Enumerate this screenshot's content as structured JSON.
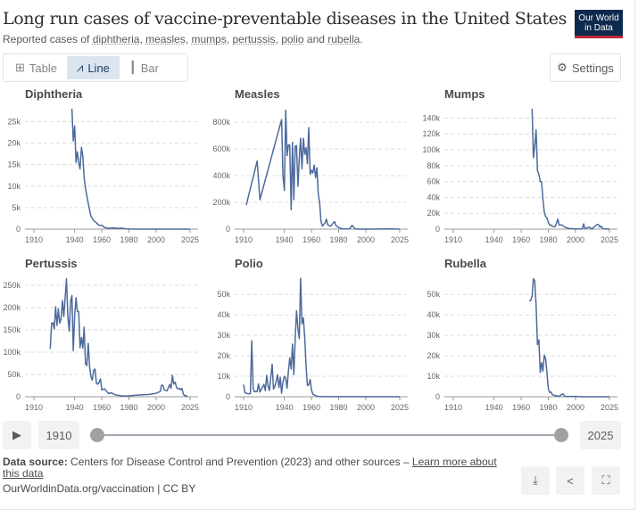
{
  "header": {
    "title": "Long run cases of vaccine-preventable diseases in the United States",
    "subtitle_prefix": "Reported cases of ",
    "subtitle_terms": [
      "diphtheria",
      "measles",
      "mumps",
      "pertussis",
      "polio",
      "rubella"
    ],
    "subtitle_seps": [
      ", ",
      ", ",
      ", ",
      ", ",
      " and ",
      "."
    ],
    "logo": "Our World in Data"
  },
  "toolbar": {
    "tabs": [
      {
        "label": "Table",
        "icon": "table-icon"
      },
      {
        "label": "Line",
        "icon": "line-chart-icon",
        "active": true
      },
      {
        "label": "Bar",
        "icon": "bar-chart-icon"
      }
    ],
    "settings_label": "Settings"
  },
  "timeline": {
    "start": "1910",
    "end": "2025"
  },
  "footer": {
    "source_label": "Data source:",
    "source_text": " Centers for Disease Control and Prevention (2023) and other sources – ",
    "learn_more": "Learn more about this data",
    "url": "OurWorldinData.org/vaccination | CC BY"
  },
  "colors": {
    "line": "#4c6a9c",
    "grid": "#dddddd"
  },
  "chart_data": [
    {
      "type": "line",
      "title": "Diphtheria",
      "xticks": [
        "1910",
        "1940",
        "1960",
        "1980",
        "2000",
        "2025"
      ],
      "yticks": [
        0,
        5000,
        10000,
        15000,
        20000,
        25000
      ],
      "ytick_labels": [
        "0",
        "5k",
        "10k",
        "15k",
        "20k",
        "25k"
      ],
      "ylim": [
        0,
        28400
      ],
      "xlim": [
        1910,
        2025
      ],
      "series": [
        [
          1938,
          28000
        ],
        [
          1939,
          20500
        ],
        [
          1940,
          24000
        ],
        [
          1941,
          15500
        ],
        [
          1942,
          18000
        ],
        [
          1943,
          15500
        ],
        [
          1944,
          14000
        ],
        [
          1945,
          19000
        ],
        [
          1946,
          17000
        ],
        [
          1947,
          12000
        ],
        [
          1948,
          9500
        ],
        [
          1950,
          6000
        ],
        [
          1952,
          3000
        ],
        [
          1954,
          2000
        ],
        [
          1956,
          1500
        ],
        [
          1958,
          900
        ],
        [
          1960,
          900
        ],
        [
          1962,
          400
        ],
        [
          1965,
          200
        ],
        [
          1970,
          300
        ],
        [
          1972,
          150
        ],
        [
          1975,
          250
        ],
        [
          1978,
          50
        ],
        [
          1985,
          10
        ],
        [
          2025,
          0
        ]
      ]
    },
    {
      "type": "line",
      "title": "Measles",
      "xticks": [
        "1910",
        "1940",
        "1960",
        "1980",
        "2000",
        "2025"
      ],
      "yticks": [
        0,
        200000,
        400000,
        600000,
        800000
      ],
      "ytick_labels": [
        "0",
        "200k",
        "400k",
        "600k",
        "800k"
      ],
      "ylim": [
        0,
        914000
      ],
      "xlim": [
        1910,
        2025
      ],
      "series": [
        [
          1912,
          180000
        ],
        [
          1920,
          510000
        ],
        [
          1922,
          220000
        ],
        [
          1938,
          820000
        ],
        [
          1939,
          400000
        ],
        [
          1940,
          290000
        ],
        [
          1941,
          890000
        ],
        [
          1942,
          550000
        ],
        [
          1943,
          630000
        ],
        [
          1944,
          630000
        ],
        [
          1945,
          145000
        ],
        [
          1946,
          650000
        ],
        [
          1947,
          220000
        ],
        [
          1948,
          620000
        ],
        [
          1949,
          625000
        ],
        [
          1950,
          320000
        ],
        [
          1951,
          530000
        ],
        [
          1952,
          680000
        ],
        [
          1953,
          450000
        ],
        [
          1954,
          680000
        ],
        [
          1955,
          560000
        ],
        [
          1956,
          610000
        ],
        [
          1957,
          490000
        ],
        [
          1958,
          760000
        ],
        [
          1959,
          410000
        ],
        [
          1960,
          440000
        ],
        [
          1961,
          420000
        ],
        [
          1962,
          480000
        ],
        [
          1963,
          385000
        ],
        [
          1964,
          460000
        ],
        [
          1965,
          260000
        ],
        [
          1966,
          200000
        ],
        [
          1967,
          60000
        ],
        [
          1968,
          22000
        ],
        [
          1970,
          47000
        ],
        [
          1971,
          75000
        ],
        [
          1972,
          32000
        ],
        [
          1974,
          22000
        ],
        [
          1977,
          57000
        ],
        [
          1978,
          27000
        ],
        [
          1980,
          13000
        ],
        [
          1983,
          1500
        ],
        [
          1988,
          3000
        ],
        [
          1990,
          28000
        ],
        [
          1992,
          2200
        ],
        [
          1995,
          300
        ],
        [
          2000,
          100
        ],
        [
          2019,
          1300
        ],
        [
          2025,
          300
        ]
      ]
    },
    {
      "type": "line",
      "title": "Mumps",
      "xticks": [
        "1910",
        "1940",
        "1960",
        "1980",
        "2000",
        "2025"
      ],
      "yticks": [
        0,
        20000,
        40000,
        60000,
        80000,
        100000,
        120000,
        140000
      ],
      "ytick_labels": [
        "0",
        "20k",
        "40k",
        "60k",
        "80k",
        "100k",
        "120k",
        "140k"
      ],
      "ylim": [
        0,
        154000
      ],
      "xlim": [
        1910,
        2025
      ],
      "series": [
        [
          1968,
          152000
        ],
        [
          1969,
          90000
        ],
        [
          1970,
          105000
        ],
        [
          1971,
          125000
        ],
        [
          1972,
          74000
        ],
        [
          1973,
          69000
        ],
        [
          1974,
          60000
        ],
        [
          1975,
          60000
        ],
        [
          1976,
          39000
        ],
        [
          1977,
          21000
        ],
        [
          1978,
          16000
        ],
        [
          1979,
          14000
        ],
        [
          1980,
          8600
        ],
        [
          1981,
          4900
        ],
        [
          1982,
          5300
        ],
        [
          1983,
          3300
        ],
        [
          1985,
          3000
        ],
        [
          1986,
          7800
        ],
        [
          1987,
          12800
        ],
        [
          1988,
          4900
        ],
        [
          1990,
          5300
        ],
        [
          1992,
          2600
        ],
        [
          1995,
          900
        ],
        [
          2000,
          340
        ],
        [
          2005,
          300
        ],
        [
          2006,
          6600
        ],
        [
          2007,
          800
        ],
        [
          2009,
          2000
        ],
        [
          2010,
          2600
        ],
        [
          2012,
          200
        ],
        [
          2016,
          6000
        ],
        [
          2017,
          5600
        ],
        [
          2018,
          2500
        ],
        [
          2019,
          3800
        ],
        [
          2020,
          600
        ],
        [
          2022,
          300
        ],
        [
          2025,
          0
        ]
      ]
    },
    {
      "type": "line",
      "title": "Pertussis",
      "xticks": [
        "1910",
        "1940",
        "1960",
        "1980",
        "2000",
        "2025"
      ],
      "yticks": [
        0,
        50000,
        100000,
        150000,
        200000,
        250000
      ],
      "ytick_labels": [
        "0",
        "50k",
        "100k",
        "150k",
        "200k",
        "250k"
      ],
      "ylim": [
        0,
        280000
      ],
      "xlim": [
        1910,
        2025
      ],
      "series": [
        [
          1922,
          107000
        ],
        [
          1923,
          165000
        ],
        [
          1924,
          166000
        ],
        [
          1925,
          152000
        ],
        [
          1926,
          202000
        ],
        [
          1927,
          160000
        ],
        [
          1928,
          197000
        ],
        [
          1929,
          165000
        ],
        [
          1930,
          175000
        ],
        [
          1931,
          216000
        ],
        [
          1932,
          180000
        ],
        [
          1934,
          265000
        ],
        [
          1935,
          180000
        ],
        [
          1936,
          147000
        ],
        [
          1937,
          215000
        ],
        [
          1938,
          227000
        ],
        [
          1939,
          103000
        ],
        [
          1940,
          183000
        ],
        [
          1941,
          222000
        ],
        [
          1942,
          191000
        ],
        [
          1943,
          191000
        ],
        [
          1944,
          110000
        ],
        [
          1945,
          133000
        ],
        [
          1946,
          109000
        ],
        [
          1947,
          156000
        ],
        [
          1948,
          74000
        ],
        [
          1949,
          70000
        ],
        [
          1950,
          120000
        ],
        [
          1951,
          68000
        ],
        [
          1952,
          45000
        ],
        [
          1953,
          37000
        ],
        [
          1954,
          60000
        ],
        [
          1955,
          62000
        ],
        [
          1956,
          31000
        ],
        [
          1957,
          28000
        ],
        [
          1958,
          32000
        ],
        [
          1959,
          40000
        ],
        [
          1960,
          15000
        ],
        [
          1962,
          18000
        ],
        [
          1965,
          7000
        ],
        [
          1967,
          9000
        ],
        [
          1970,
          4200
        ],
        [
          1975,
          1700
        ],
        [
          1980,
          1700
        ],
        [
          1985,
          3600
        ],
        [
          1990,
          4600
        ],
        [
          1995,
          5100
        ],
        [
          2000,
          7900
        ],
        [
          2003,
          11600
        ],
        [
          2004,
          25800
        ],
        [
          2005,
          25600
        ],
        [
          2006,
          15600
        ],
        [
          2008,
          13300
        ],
        [
          2010,
          27500
        ],
        [
          2011,
          18700
        ],
        [
          2012,
          48300
        ],
        [
          2013,
          28600
        ],
        [
          2014,
          32900
        ],
        [
          2015,
          20800
        ],
        [
          2016,
          17900
        ],
        [
          2017,
          18900
        ],
        [
          2018,
          15600
        ],
        [
          2019,
          18600
        ],
        [
          2020,
          6100
        ],
        [
          2021,
          2100
        ],
        [
          2022,
          3000
        ],
        [
          2023,
          0
        ]
      ]
    },
    {
      "type": "line",
      "title": "Polio",
      "xticks": [
        "1910",
        "1940",
        "1960",
        "1980",
        "2000",
        "2025"
      ],
      "yticks": [
        0,
        10000,
        20000,
        30000,
        40000,
        50000
      ],
      "ytick_labels": [
        "0",
        "10k",
        "20k",
        "30k",
        "40k",
        "50k"
      ],
      "ylim": [
        0,
        61000
      ],
      "xlim": [
        1910,
        2025
      ],
      "series": [
        [
          1910,
          6000
        ],
        [
          1911,
          2000
        ],
        [
          1913,
          1500
        ],
        [
          1915,
          1500
        ],
        [
          1916,
          27300
        ],
        [
          1917,
          4000
        ],
        [
          1918,
          2500
        ],
        [
          1920,
          2500
        ],
        [
          1921,
          6300
        ],
        [
          1922,
          2300
        ],
        [
          1925,
          6000
        ],
        [
          1926,
          3000
        ],
        [
          1927,
          10500
        ],
        [
          1928,
          5300
        ],
        [
          1929,
          3000
        ],
        [
          1931,
          15900
        ],
        [
          1932,
          3800
        ],
        [
          1933,
          5000
        ],
        [
          1934,
          7500
        ],
        [
          1935,
          10800
        ],
        [
          1936,
          4500
        ],
        [
          1937,
          9500
        ],
        [
          1938,
          1700
        ],
        [
          1939,
          7300
        ],
        [
          1940,
          10000
        ],
        [
          1941,
          9000
        ],
        [
          1942,
          4200
        ],
        [
          1943,
          12500
        ],
        [
          1944,
          19000
        ],
        [
          1945,
          13600
        ],
        [
          1946,
          25700
        ],
        [
          1947,
          10800
        ],
        [
          1948,
          27700
        ],
        [
          1949,
          42000
        ],
        [
          1950,
          33300
        ],
        [
          1951,
          28400
        ],
        [
          1952,
          57900
        ],
        [
          1953,
          35600
        ],
        [
          1954,
          38500
        ],
        [
          1955,
          28900
        ],
        [
          1956,
          15100
        ],
        [
          1957,
          5500
        ],
        [
          1958,
          5800
        ],
        [
          1959,
          8400
        ],
        [
          1960,
          3200
        ],
        [
          1961,
          1300
        ],
        [
          1962,
          900
        ],
        [
          1965,
          70
        ],
        [
          1970,
          30
        ],
        [
          2025,
          0
        ]
      ]
    },
    {
      "type": "line",
      "title": "Rubella",
      "xticks": [
        "1910",
        "1940",
        "1960",
        "1980",
        "2000",
        "2025"
      ],
      "yticks": [
        0,
        10000,
        20000,
        30000,
        40000,
        50000
      ],
      "ytick_labels": [
        "0",
        "10k",
        "20k",
        "30k",
        "40k",
        "50k"
      ],
      "ylim": [
        0,
        61000
      ],
      "xlim": [
        1910,
        2025
      ],
      "series": [
        [
          1966,
          46900
        ],
        [
          1967,
          47000
        ],
        [
          1968,
          49000
        ],
        [
          1969,
          57700
        ],
        [
          1970,
          56500
        ],
        [
          1971,
          45000
        ],
        [
          1972,
          25500
        ],
        [
          1973,
          27800
        ],
        [
          1974,
          11900
        ],
        [
          1975,
          16700
        ],
        [
          1976,
          12500
        ],
        [
          1977,
          20400
        ],
        [
          1978,
          18300
        ],
        [
          1979,
          11800
        ],
        [
          1980,
          3900
        ],
        [
          1981,
          2100
        ],
        [
          1982,
          2300
        ],
        [
          1983,
          970
        ],
        [
          1985,
          630
        ],
        [
          1988,
          225
        ],
        [
          1990,
          1100
        ],
        [
          1991,
          1400
        ],
        [
          1992,
          160
        ],
        [
          1995,
          130
        ],
        [
          2000,
          176
        ],
        [
          2005,
          11
        ],
        [
          2025,
          0
        ]
      ]
    }
  ]
}
